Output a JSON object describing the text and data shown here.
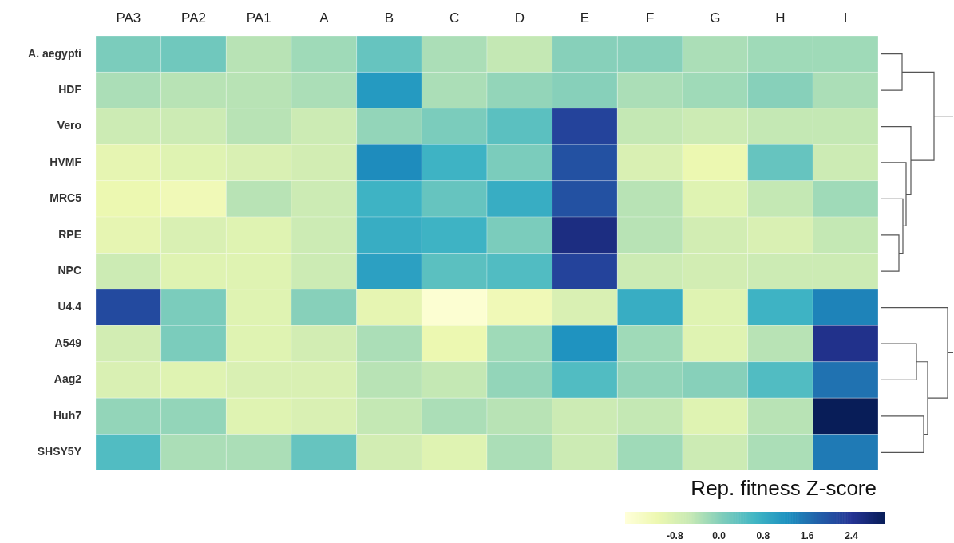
{
  "chart_data": {
    "type": "heatmap",
    "categories": [
      "PA3",
      "PA2",
      "PA1",
      "A",
      "B",
      "C",
      "D",
      "E",
      "F",
      "G",
      "H",
      "I"
    ],
    "y_categories": [
      "A. aegypti",
      "HDF",
      "Vero",
      "HVMF",
      "MRC5",
      "RPE",
      "NPC",
      "U4.4",
      "A549",
      "Aag2",
      "Huh7",
      "SHSY5Y"
    ],
    "cells": [
      [
        0.1,
        0.2,
        -0.4,
        -0.2,
        0.3,
        -0.3,
        -0.5,
        0.0,
        0.0,
        -0.3,
        -0.2,
        -0.2
      ],
      [
        -0.3,
        -0.4,
        -0.4,
        -0.3,
        1.1,
        -0.3,
        -0.1,
        0.0,
        -0.3,
        -0.2,
        0.0,
        -0.3
      ],
      [
        -0.6,
        -0.6,
        -0.4,
        -0.6,
        -0.1,
        0.1,
        0.4,
        2.2,
        -0.5,
        -0.6,
        -0.5,
        -0.5
      ],
      [
        -1.0,
        -0.9,
        -0.8,
        -0.7,
        1.3,
        0.7,
        0.1,
        2.0,
        -0.8,
        -1.1,
        0.3,
        -0.6
      ],
      [
        -1.1,
        -1.2,
        -0.4,
        -0.6,
        0.7,
        0.3,
        0.8,
        2.0,
        -0.4,
        -0.9,
        -0.5,
        -0.2
      ],
      [
        -1.0,
        -0.8,
        -0.9,
        -0.6,
        0.8,
        0.7,
        0.1,
        2.6,
        -0.4,
        -0.7,
        -0.8,
        -0.5
      ],
      [
        -0.6,
        -0.9,
        -0.9,
        -0.6,
        1.0,
        0.4,
        0.5,
        2.2,
        -0.6,
        -0.7,
        -0.6,
        -0.6
      ],
      [
        2.1,
        0.1,
        -0.9,
        0.0,
        -1.0,
        -1.6,
        -1.2,
        -0.8,
        0.8,
        -0.9,
        0.7,
        1.4
      ],
      [
        -0.7,
        0.1,
        -0.9,
        -0.7,
        -0.3,
        -1.1,
        -0.2,
        1.2,
        -0.2,
        -0.9,
        -0.4,
        2.5
      ],
      [
        -0.8,
        -0.9,
        -0.8,
        -0.8,
        -0.4,
        -0.5,
        -0.1,
        0.5,
        -0.1,
        0.0,
        0.5,
        1.6
      ],
      [
        -0.1,
        -0.1,
        -0.9,
        -0.8,
        -0.5,
        -0.3,
        -0.4,
        -0.6,
        -0.5,
        -0.9,
        -0.4,
        3.0
      ],
      [
        0.5,
        -0.3,
        -0.3,
        0.3,
        -0.7,
        -0.9,
        -0.3,
        -0.6,
        -0.2,
        -0.6,
        -0.3,
        1.5
      ]
    ],
    "clabel": "Rep. fitness Z-score",
    "clim": [
      -1.7,
      3.0
    ],
    "cticks": [
      {
        "value": -0.8,
        "label": "-0.8"
      },
      {
        "value": 0,
        "label": "0.0"
      },
      {
        "value": 0.8,
        "label": "0.8"
      },
      {
        "value": 1.6,
        "label": "1.6"
      },
      {
        "value": 2.4,
        "label": "2.4"
      }
    ]
  }
}
